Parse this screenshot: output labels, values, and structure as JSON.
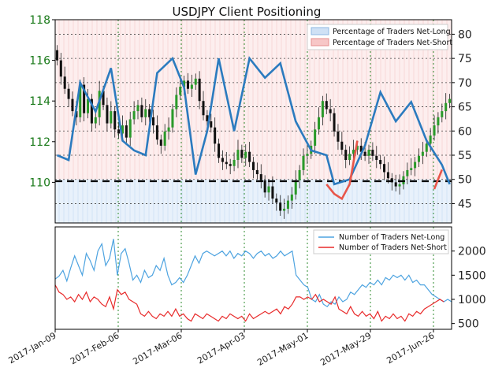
{
  "chart_data": [
    {
      "type": "line",
      "title": "USDJPY Client Positioning",
      "price_axis": {
        "ticks": [
          110,
          112,
          114,
          116,
          118
        ],
        "range": [
          108.0,
          118.0
        ],
        "color": "#1a7a1a"
      },
      "sentiment_axis": {
        "ticks": [
          45,
          50,
          55,
          60,
          65,
          70,
          75,
          80
        ],
        "range": [
          41.0,
          83.0
        ]
      },
      "x_axis": {
        "ticks": [
          "2017-Jan-09",
          "2017-Feb-06",
          "2017-Mar-06",
          "2017-Apr-03",
          "2017-May-01",
          "2017-May-29",
          "2017-Jun-26"
        ]
      },
      "legend": [
        "Percentage of Traders Net-Long",
        "Percentage of Traders Net-Short"
      ],
      "legend_position": "top-right",
      "reference_level": 50,
      "grid": true,
      "series": [
        {
          "name": "USDJPY price (candles)",
          "values": [
            116.0,
            115.2,
            114.6,
            114.1,
            113.5,
            113.2,
            114.8,
            113.4,
            114.1,
            112.9,
            113.2,
            114.5,
            113.8,
            112.9,
            113.5,
            112.6,
            112.4,
            112.8,
            112.2,
            113.1,
            113.5,
            113.8,
            113.2,
            113.6,
            113.2,
            112.8,
            112.1,
            111.8,
            112.5,
            112.7,
            113.6,
            114.3,
            114.7,
            115.0,
            114.6,
            114.8,
            115.1,
            114.0,
            113.3,
            113.0,
            112.7,
            111.9,
            111.2,
            111.0,
            110.9,
            110.8,
            111.1,
            111.6,
            111.2,
            111.5,
            111.0,
            110.6,
            110.4,
            110.1,
            109.5,
            109.8,
            109.2,
            109.0,
            108.6,
            108.7,
            109.1,
            109.4,
            110.1,
            110.6,
            111.3,
            111.4,
            111.8,
            112.6,
            113.2,
            114.0,
            113.6,
            113.4,
            112.5,
            112.0,
            111.6,
            111.1,
            111.4,
            111.6,
            111.8,
            111.5,
            111.3,
            111.6,
            111.3,
            111.1,
            110.9,
            110.5,
            110.2,
            110.0,
            109.8,
            109.9,
            110.3,
            110.6,
            110.7,
            111.0,
            111.3,
            111.5,
            111.9,
            112.3,
            112.8,
            113.2,
            113.5,
            113.9,
            114.1
          ],
          "open_close_note": "daily OHLC candles; values are daily closes in yen"
        },
        {
          "name": "Percentage of Traders Net-Long",
          "x_index": [
            0,
            3,
            6,
            10,
            14,
            17,
            20,
            23,
            26,
            30,
            33,
            36,
            39,
            42,
            46,
            50,
            54,
            58,
            62,
            66,
            70,
            72,
            76,
            80,
            84,
            88,
            92,
            96,
            100,
            102
          ],
          "values": [
            55,
            54,
            70,
            64,
            73,
            58,
            56,
            55,
            72,
            75,
            69,
            51,
            60,
            75,
            60,
            75,
            71,
            74,
            62,
            56,
            55,
            49,
            50,
            57,
            68,
            62,
            66,
            58,
            53,
            49
          ],
          "color": "#2b7bbf"
        },
        {
          "name": "Percentage of Traders Net-Short",
          "x_index": [
            70,
            72,
            74,
            76,
            78,
            98,
            100
          ],
          "values": [
            49,
            47,
            46,
            49,
            58,
            48,
            52
          ],
          "color": "#e8564a"
        }
      ]
    },
    {
      "type": "line",
      "legend_position": "top-right",
      "y_axis": {
        "ticks": [
          500,
          1000,
          1500,
          2000
        ],
        "range": [
          380,
          2500
        ]
      },
      "x_axis": {
        "ticks": [
          "2017-Jan-09",
          "2017-Feb-06",
          "2017-Mar-06",
          "2017-Apr-03",
          "2017-May-01",
          "2017-May-29",
          "2017-Jun-26"
        ]
      },
      "series": [
        {
          "name": "Number of Traders Net-Long",
          "values": [
            1420,
            1480,
            1600,
            1380,
            1650,
            1900,
            1700,
            1500,
            1950,
            1800,
            1600,
            2000,
            2150,
            1700,
            1850,
            2250,
            1500,
            1950,
            2050,
            1750,
            1400,
            1500,
            1350,
            1600,
            1450,
            1500,
            1700,
            1600,
            1850,
            1500,
            1300,
            1350,
            1450,
            1350,
            1500,
            1700,
            1900,
            1750,
            1950,
            2000,
            1950,
            1900,
            1950,
            2000,
            1900,
            2000,
            1850,
            1950,
            1900,
            2000,
            1950,
            1850,
            1950,
            2000,
            1900,
            1950,
            1850,
            1900,
            2000,
            1900,
            1950,
            2000,
            1500,
            1400,
            1300,
            1250,
            1000,
            950,
            1100,
            900,
            850,
            950,
            900,
            1050,
            950,
            1000,
            1150,
            1100,
            1200,
            1300,
            1250,
            1350,
            1300,
            1400,
            1300,
            1450,
            1400,
            1500,
            1450,
            1500,
            1400,
            1500,
            1350,
            1400,
            1300,
            1300,
            1200,
            1100,
            1050,
            1000,
            950,
            1000,
            950
          ],
          "color": "#4da3e0"
        },
        {
          "name": "Number of Traders Net-Short",
          "values": [
            1300,
            1150,
            1100,
            1000,
            1050,
            950,
            1100,
            1000,
            1150,
            950,
            1050,
            1000,
            900,
            850,
            1050,
            800,
            1200,
            1100,
            1150,
            1000,
            950,
            900,
            700,
            650,
            750,
            650,
            600,
            700,
            650,
            750,
            650,
            800,
            650,
            700,
            600,
            550,
            700,
            650,
            600,
            700,
            650,
            600,
            550,
            650,
            600,
            700,
            650,
            600,
            650,
            550,
            700,
            600,
            650,
            700,
            750,
            700,
            750,
            800,
            700,
            850,
            800,
            900,
            1050,
            1050,
            1000,
            1050,
            1000,
            1100,
            950,
            1000,
            950,
            900,
            1050,
            800,
            750,
            700,
            850,
            700,
            650,
            750,
            650,
            700,
            600,
            750,
            550,
            650,
            600,
            700,
            600,
            650,
            550,
            700,
            650,
            750,
            700,
            800,
            850,
            900,
            950,
            1000,
            950
          ],
          "color": "#e82a2a"
        }
      ]
    }
  ]
}
